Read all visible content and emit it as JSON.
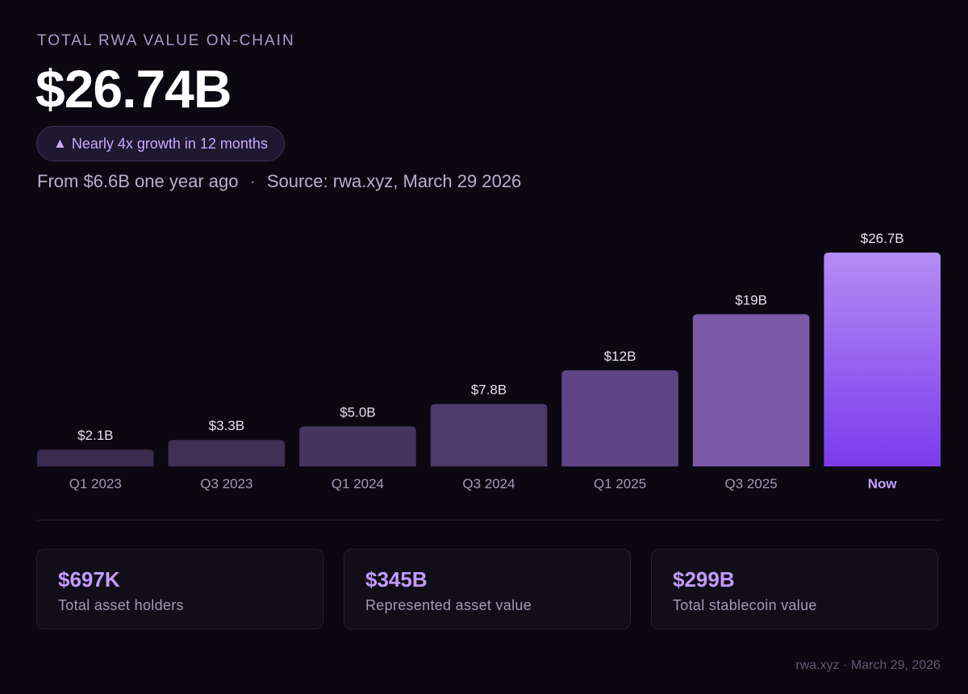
{
  "header": {
    "eyebrow": "TOTAL RWA VALUE ON-CHAIN",
    "value": "$26.74B",
    "growth_icon": "triangle-up-icon",
    "growth_text": "Nearly 4x growth in 12 months",
    "from_text": "From $6.6B one year ago",
    "separator": "·",
    "source_text": "Source: rwa.xyz, March 29 2026"
  },
  "chart_data": {
    "type": "bar",
    "categories": [
      "Q1 2023",
      "Q3 2023",
      "Q1 2024",
      "Q3 2024",
      "Q1 2025",
      "Q3 2025",
      "Now"
    ],
    "values": [
      2.1,
      3.3,
      5.0,
      7.8,
      12,
      19,
      26.7
    ],
    "value_labels": [
      "$2.1B",
      "$3.3B",
      "$5.0B",
      "$7.8B",
      "$12B",
      "$19B",
      "$26.7B"
    ],
    "highlight_index": 6,
    "ylim": [
      0,
      30
    ],
    "grid": false,
    "title": "",
    "xlabel": "",
    "ylabel": ""
  },
  "colors": {
    "bar_fills": [
      "#3a2c4f",
      "#3f3056",
      "#45355e",
      "#4d3a6a",
      "#5e4585",
      "#7b58a8"
    ],
    "highlight_top": "#b48cf4",
    "highlight_bottom": "#7c3aed",
    "bar_label": "#e6e0f2",
    "tick_label": "#a39ab5",
    "tick_label_highlight": "#c49bff",
    "accent": "#c49bff"
  },
  "stats": [
    {
      "value": "$697K",
      "label": "Total asset holders"
    },
    {
      "value": "$345B",
      "label": "Represented asset value"
    },
    {
      "value": "$299B",
      "label": "Total stablecoin value"
    }
  ],
  "footer": "rwa.xyz · March 29, 2026"
}
